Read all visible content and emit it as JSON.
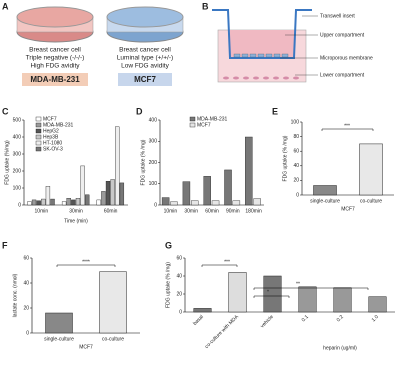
{
  "panel_labels": [
    "A",
    "B",
    "C",
    "D",
    "E",
    "F",
    "G"
  ],
  "diagram_a": {
    "left": {
      "lines": [
        "Breast cancer cell",
        "Triple negative (-/-/-)",
        "High FDG avidity"
      ],
      "name": "MDA-MB-231"
    },
    "right": {
      "lines": [
        "Breast cancer cell",
        "Luminal type (+/+/-)",
        "Low FDG avidity"
      ],
      "name": "MCF7"
    }
  },
  "diagram_b": {
    "labels": [
      "Transwell insert",
      "Upper compartment",
      "Microporous membrane",
      "Lower compartment"
    ]
  },
  "chart_data": [
    {
      "type": "bar",
      "y_label": "FDG uptake (%/mg)",
      "x_label": "Time (min)",
      "categories": [
        "10min",
        "30min",
        "60min"
      ],
      "series": [
        {
          "name": "MCF7",
          "color": "#ffffff",
          "values": [
            20,
            20,
            30
          ]
        },
        {
          "name": "MDA-MB-231",
          "color": "#9a9a9a",
          "values": [
            30,
            40,
            80
          ]
        },
        {
          "name": "HepG2",
          "color": "#555555",
          "values": [
            25,
            30,
            140
          ]
        },
        {
          "name": "Hep3B",
          "color": "#c8c8c8",
          "values": [
            35,
            40,
            150
          ]
        },
        {
          "name": "HT-1080",
          "color": "#eeeeee",
          "values": [
            110,
            230,
            460
          ]
        },
        {
          "name": "SK-OV-3",
          "color": "#777777",
          "values": [
            35,
            60,
            130
          ]
        }
      ],
      "ylim": [
        0,
        500
      ],
      "yticks": [
        0,
        100,
        200,
        300,
        400,
        500
      ]
    },
    {
      "type": "bar",
      "y_label": "FDG uptake (% /mg)",
      "categories": [
        "10min",
        "30min",
        "60min",
        "90min",
        "180min"
      ],
      "series": [
        {
          "name": "MDA-MB-231",
          "color": "#777777",
          "values": [
            35,
            110,
            135,
            165,
            320
          ]
        },
        {
          "name": "MCF7",
          "color": "#e6e6e6",
          "values": [
            15,
            20,
            20,
            20,
            30
          ]
        }
      ],
      "ylim": [
        0,
        400
      ],
      "yticks": [
        0,
        100,
        200,
        300,
        400
      ]
    },
    {
      "type": "bar",
      "y_label": "FDG uptake (% /mg)",
      "x_label": "MCF7",
      "categories": [
        "single-culture",
        "co-culture"
      ],
      "values": [
        13,
        70
      ],
      "colors": [
        "#888888",
        "#e8e8e8"
      ],
      "ylim": [
        0,
        100
      ],
      "yticks": [
        0,
        20,
        40,
        60,
        80,
        100
      ],
      "annotations": [
        "***"
      ]
    },
    {
      "type": "bar",
      "y_label": "lactate conc. (nmol)",
      "x_label": "MCF7",
      "categories": [
        "single-culture",
        "co-culture"
      ],
      "values": [
        16,
        49
      ],
      "colors": [
        "#888888",
        "#e8e8e8"
      ],
      "ylim": [
        0,
        60
      ],
      "yticks": [
        0,
        20,
        40,
        60
      ],
      "annotations": [
        "****"
      ]
    },
    {
      "type": "bar",
      "y_label": "FDG uptake (% /mg)",
      "categories": [
        "basal",
        "co-culture with MDA",
        "vehicle",
        "0.1",
        "0.2",
        "1.0"
      ],
      "values": [
        4,
        44,
        40,
        28,
        27,
        17
      ],
      "colors": [
        "#777777",
        "#dddddd",
        "#777777",
        "#999999",
        "#999999",
        "#999999"
      ],
      "ylim": [
        0,
        60
      ],
      "yticks": [
        0,
        20,
        40,
        60
      ],
      "annotations": [
        "***",
        "*",
        "**",
        "heparin (ug/ml)"
      ]
    }
  ]
}
